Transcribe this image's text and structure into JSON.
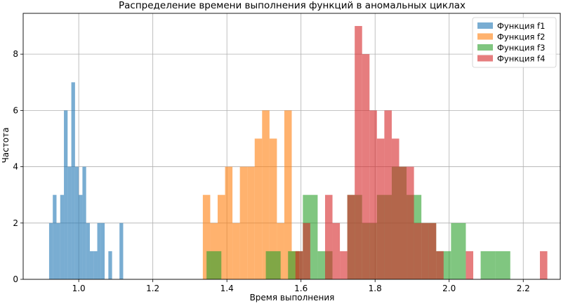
{
  "chart_data": {
    "type": "bar",
    "title": "Распределение времени выполнения функций в аномальных циклах",
    "xlabel": "Время выполнения",
    "ylabel": "Частота",
    "xlim": [
      0.85,
      2.3
    ],
    "ylim": [
      0,
      9.45
    ],
    "xticks": [
      "1.0",
      "1.2",
      "1.4",
      "1.6",
      "1.8",
      "2.0",
      "2.2"
    ],
    "yticks": [
      "0",
      "2",
      "4",
      "6",
      "8"
    ],
    "grid": true,
    "legend_position": "top-right",
    "series": [
      {
        "name": "Функция f1",
        "color": "#1f77b4",
        "alpha": 0.6,
        "bins": [
          {
            "x0": 0.92,
            "x1": 0.93,
            "count": 2
          },
          {
            "x0": 0.93,
            "x1": 0.94,
            "count": 3
          },
          {
            "x0": 0.94,
            "x1": 0.95,
            "count": 2
          },
          {
            "x0": 0.95,
            "x1": 0.96,
            "count": 3
          },
          {
            "x0": 0.96,
            "x1": 0.97,
            "count": 6
          },
          {
            "x0": 0.97,
            "x1": 0.98,
            "count": 4
          },
          {
            "x0": 0.98,
            "x1": 0.99,
            "count": 7
          },
          {
            "x0": 0.99,
            "x1": 1.0,
            "count": 4
          },
          {
            "x0": 1.0,
            "x1": 1.01,
            "count": 3
          },
          {
            "x0": 1.01,
            "x1": 1.02,
            "count": 4
          },
          {
            "x0": 1.02,
            "x1": 1.03,
            "count": 2
          },
          {
            "x0": 1.03,
            "x1": 1.04,
            "count": 1
          },
          {
            "x0": 1.04,
            "x1": 1.05,
            "count": 1
          },
          {
            "x0": 1.05,
            "x1": 1.06,
            "count": 2
          },
          {
            "x0": 1.06,
            "x1": 1.07,
            "count": 2
          },
          {
            "x0": 1.08,
            "x1": 1.09,
            "count": 1
          },
          {
            "x0": 1.11,
            "x1": 1.12,
            "count": 2
          }
        ]
      },
      {
        "name": "Функция f2",
        "color": "#ff7f0e",
        "alpha": 0.6,
        "bins": [
          {
            "x0": 1.335,
            "x1": 1.355,
            "count": 3
          },
          {
            "x0": 1.355,
            "x1": 1.375,
            "count": 2
          },
          {
            "x0": 1.375,
            "x1": 1.395,
            "count": 3
          },
          {
            "x0": 1.395,
            "x1": 1.415,
            "count": 4
          },
          {
            "x0": 1.415,
            "x1": 1.435,
            "count": 2
          },
          {
            "x0": 1.435,
            "x1": 1.455,
            "count": 4
          },
          {
            "x0": 1.455,
            "x1": 1.475,
            "count": 4
          },
          {
            "x0": 1.475,
            "x1": 1.495,
            "count": 5
          },
          {
            "x0": 1.495,
            "x1": 1.515,
            "count": 6
          },
          {
            "x0": 1.515,
            "x1": 1.535,
            "count": 5
          },
          {
            "x0": 1.535,
            "x1": 1.555,
            "count": 2
          },
          {
            "x0": 1.555,
            "x1": 1.575,
            "count": 6
          },
          {
            "x0": 1.575,
            "x1": 1.595,
            "count": 1
          }
        ]
      },
      {
        "name": "Функция f3",
        "color": "#2ca02c",
        "alpha": 0.6,
        "bins": [
          {
            "x0": 1.345,
            "x1": 1.385,
            "count": 1
          },
          {
            "x0": 1.505,
            "x1": 1.545,
            "count": 1
          },
          {
            "x0": 1.565,
            "x1": 1.605,
            "count": 1
          },
          {
            "x0": 1.605,
            "x1": 1.645,
            "count": 3
          },
          {
            "x0": 1.645,
            "x1": 1.665,
            "count": 1
          },
          {
            "x0": 1.665,
            "x1": 1.685,
            "count": 1
          },
          {
            "x0": 1.725,
            "x1": 1.765,
            "count": 3
          },
          {
            "x0": 1.765,
            "x1": 1.805,
            "count": 2
          },
          {
            "x0": 1.805,
            "x1": 1.845,
            "count": 3
          },
          {
            "x0": 1.845,
            "x1": 1.885,
            "count": 4
          },
          {
            "x0": 1.885,
            "x1": 1.925,
            "count": 3
          },
          {
            "x0": 1.925,
            "x1": 1.965,
            "count": 2
          },
          {
            "x0": 1.965,
            "x1": 2.005,
            "count": 1
          },
          {
            "x0": 2.005,
            "x1": 2.045,
            "count": 2
          },
          {
            "x0": 2.045,
            "x1": 2.085,
            "count": 0
          },
          {
            "x0": 2.085,
            "x1": 2.125,
            "count": 1
          },
          {
            "x0": 2.125,
            "x1": 2.165,
            "count": 1
          }
        ]
      },
      {
        "name": "Функция f4",
        "color": "#d62728",
        "alpha": 0.6,
        "bins": [
          {
            "x0": 1.585,
            "x1": 1.605,
            "count": 1
          },
          {
            "x0": 1.605,
            "x1": 1.625,
            "count": 2
          },
          {
            "x0": 1.665,
            "x1": 1.685,
            "count": 3
          },
          {
            "x0": 1.685,
            "x1": 1.705,
            "count": 2
          },
          {
            "x0": 1.705,
            "x1": 1.725,
            "count": 1
          },
          {
            "x0": 1.725,
            "x1": 1.745,
            "count": 3
          },
          {
            "x0": 1.745,
            "x1": 1.765,
            "count": 9
          },
          {
            "x0": 1.765,
            "x1": 1.785,
            "count": 8
          },
          {
            "x0": 1.785,
            "x1": 1.805,
            "count": 6
          },
          {
            "x0": 1.805,
            "x1": 1.825,
            "count": 5
          },
          {
            "x0": 1.825,
            "x1": 1.845,
            "count": 6
          },
          {
            "x0": 1.845,
            "x1": 1.865,
            "count": 5
          },
          {
            "x0": 1.865,
            "x1": 1.885,
            "count": 4
          },
          {
            "x0": 1.885,
            "x1": 1.905,
            "count": 4
          },
          {
            "x0": 1.905,
            "x1": 1.925,
            "count": 2
          },
          {
            "x0": 1.925,
            "x1": 1.945,
            "count": 2
          },
          {
            "x0": 1.945,
            "x1": 1.965,
            "count": 2
          },
          {
            "x0": 1.965,
            "x1": 1.985,
            "count": 1
          },
          {
            "x0": 2.045,
            "x1": 2.065,
            "count": 1
          },
          {
            "x0": 2.245,
            "x1": 2.265,
            "count": 1
          }
        ]
      }
    ]
  }
}
